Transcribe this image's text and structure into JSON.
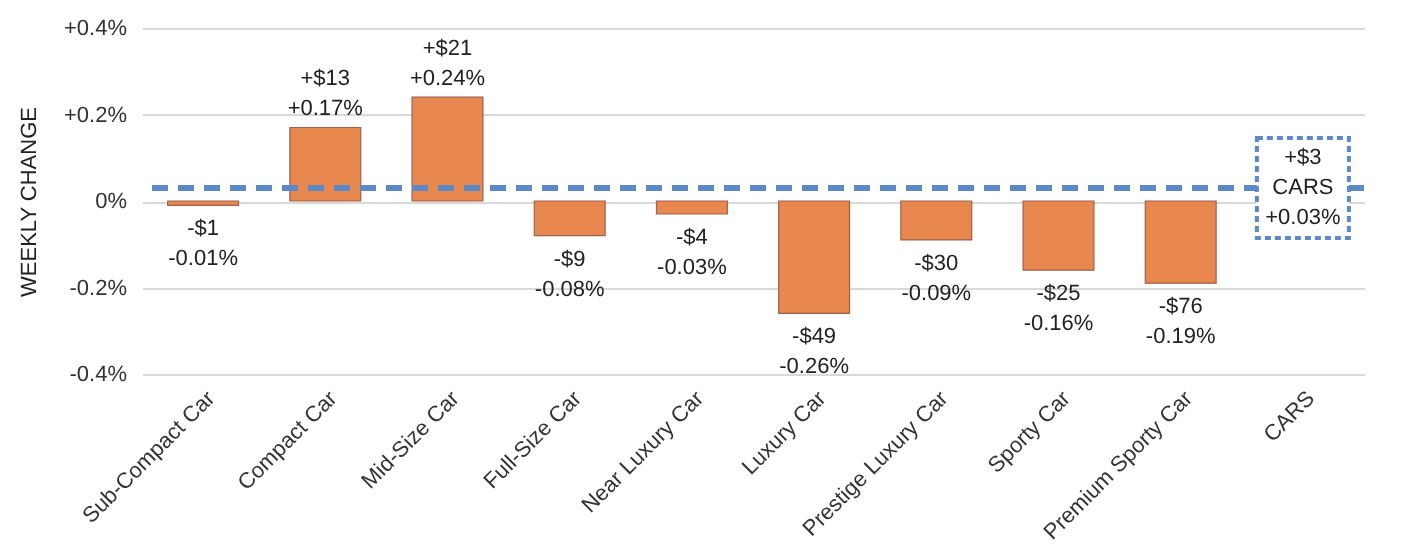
{
  "chart_data": {
    "type": "bar",
    "ylabel": "WEEKLY CHANGE",
    "categories": [
      "Sub-Compact Car",
      "Compact Car",
      "Mid-Size Car",
      "Full-Size Car",
      "Near Luxury Car",
      "Luxury Car",
      "Prestige Luxury Car",
      "Sporty Car",
      "Premium Sporty Car",
      "CARS"
    ],
    "values": [
      -0.01,
      0.17,
      0.24,
      -0.08,
      -0.03,
      -0.26,
      -0.09,
      -0.16,
      -0.19,
      null
    ],
    "color": "#e8874e",
    "value_labels": [
      "-$1\n-0.01%",
      "+$13\n+0.17%",
      "+$21\n+0.24%",
      "-$9\n-0.08%",
      "-$4\n-0.03%",
      "-$49\n-0.26%",
      "-$30\n-0.09%",
      "-$25\n-0.16%",
      "-$76\n-0.19%",
      null
    ],
    "ylim": [
      -0.4,
      0.4
    ],
    "yticks": [
      {
        "value": -0.4,
        "label": "-0.4%"
      },
      {
        "value": -0.2,
        "label": "-0.2%"
      },
      {
        "value": 0,
        "label": "0%"
      },
      {
        "value": 0.2,
        "label": "+0.2%"
      },
      {
        "value": 0.4,
        "label": "+0.4%"
      }
    ],
    "grid": "y",
    "ref_lines": [
      {
        "axis": "y",
        "value": 0.03,
        "label": "+$3\nCARS\n+0.03%",
        "color": "#5b8ac6",
        "line_style": "dashed"
      }
    ]
  }
}
